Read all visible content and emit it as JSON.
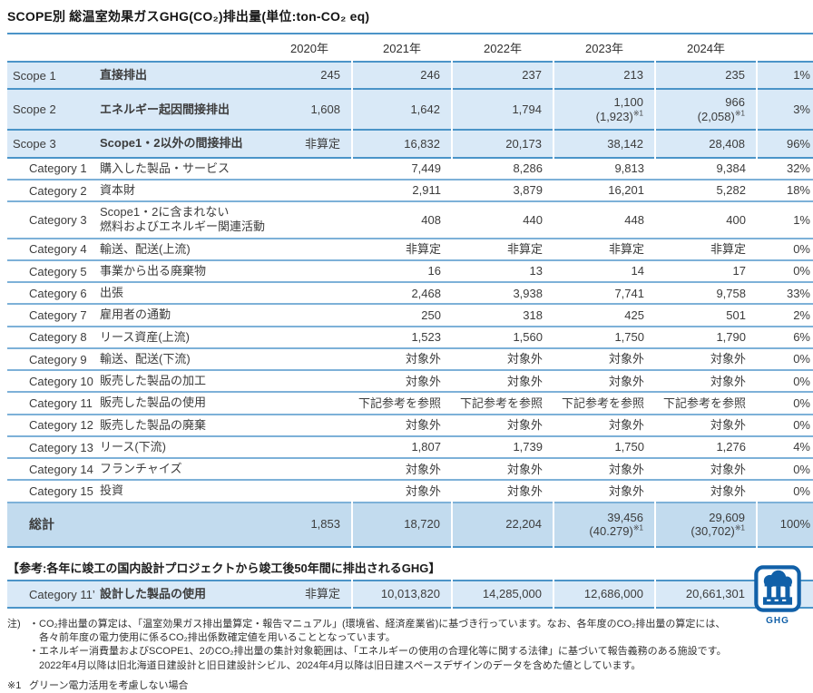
{
  "title": "SCOPE別 総温室効果ガスGHG(CO₂)排出量(単位:ton-CO₂ eq)",
  "colors": {
    "accent": "#4b94c8",
    "bg_scope": "#d9e9f7",
    "bg_total": "#c2dbee",
    "logo_blue": "#1160a8"
  },
  "table": {
    "year_headers": [
      "2020年",
      "2021年",
      "2022年",
      "2023年",
      "2024年"
    ],
    "rows": [
      {
        "type": "scope",
        "label": "Scope 1",
        "desc": "直接排出",
        "values": [
          "245",
          "246",
          "237",
          "213",
          "235"
        ],
        "pct": "1%"
      },
      {
        "type": "scope",
        "label": "Scope 2",
        "desc": "エネルギー起因間接排出",
        "values": [
          "1,608",
          "1,642",
          "1,794",
          {
            "main": "1,100",
            "sub": "(1,923)",
            "ref": "※1"
          },
          {
            "main": "966",
            "sub": "(2,058)",
            "ref": "※1"
          }
        ],
        "pct": "3%"
      },
      {
        "type": "scope",
        "label": "Scope 3",
        "desc": "Scope1・2以外の間接排出",
        "values": [
          "非算定",
          "16,832",
          "20,173",
          "38,142",
          "28,408"
        ],
        "pct": "96%"
      },
      {
        "type": "category",
        "label": "Category 1",
        "desc": "購入した製品・サービス",
        "values": [
          "",
          "7,449",
          "8,286",
          "9,813",
          "9,384"
        ],
        "pct": "32%"
      },
      {
        "type": "category",
        "label": "Category 2",
        "desc": "資本財",
        "values": [
          "",
          "2,911",
          "3,879",
          "16,201",
          "5,282"
        ],
        "pct": "18%"
      },
      {
        "type": "category",
        "label": "Category 3",
        "desc": "Scope1・2に含まれない\n燃料およびエネルギー関連活動",
        "values": [
          "",
          "408",
          "440",
          "448",
          "400"
        ],
        "pct": "1%"
      },
      {
        "type": "category",
        "label": "Category 4",
        "desc": "輸送、配送(上流)",
        "values": [
          "",
          "非算定",
          "非算定",
          "非算定",
          "非算定"
        ],
        "pct": "0%"
      },
      {
        "type": "category",
        "label": "Category 5",
        "desc": "事業から出る廃棄物",
        "values": [
          "",
          "16",
          "13",
          "14",
          "17"
        ],
        "pct": "0%"
      },
      {
        "type": "category",
        "label": "Category 6",
        "desc": "出張",
        "values": [
          "",
          "2,468",
          "3,938",
          "7,741",
          "9,758"
        ],
        "pct": "33%"
      },
      {
        "type": "category",
        "label": "Category 7",
        "desc": "雇用者の通勤",
        "values": [
          "",
          "250",
          "318",
          "425",
          "501"
        ],
        "pct": "2%"
      },
      {
        "type": "category",
        "label": "Category 8",
        "desc": "リース資産(上流)",
        "values": [
          "",
          "1,523",
          "1,560",
          "1,750",
          "1,790"
        ],
        "pct": "6%"
      },
      {
        "type": "category",
        "label": "Category 9",
        "desc": "輸送、配送(下流)",
        "values": [
          "",
          "対象外",
          "対象外",
          "対象外",
          "対象外"
        ],
        "pct": "0%"
      },
      {
        "type": "category",
        "label": "Category 10",
        "desc": "販売した製品の加工",
        "values": [
          "",
          "対象外",
          "対象外",
          "対象外",
          "対象外"
        ],
        "pct": "0%"
      },
      {
        "type": "category",
        "label": "Category 11",
        "desc": "販売した製品の使用",
        "values": [
          "",
          "下記参考を参照",
          "下記参考を参照",
          "下記参考を参照",
          "下記参考を参照"
        ],
        "pct": "0%"
      },
      {
        "type": "category",
        "label": "Category 12",
        "desc": "販売した製品の廃棄",
        "values": [
          "",
          "対象外",
          "対象外",
          "対象外",
          "対象外"
        ],
        "pct": "0%"
      },
      {
        "type": "category",
        "label": "Category 13",
        "desc": "リース(下流)",
        "values": [
          "",
          "1,807",
          "1,739",
          "1,750",
          "1,276"
        ],
        "pct": "4%"
      },
      {
        "type": "category",
        "label": "Category 14",
        "desc": "フランチャイズ",
        "values": [
          "",
          "対象外",
          "対象外",
          "対象外",
          "対象外"
        ],
        "pct": "0%"
      },
      {
        "type": "category",
        "label": "Category 15",
        "desc": "投資",
        "values": [
          "",
          "対象外",
          "対象外",
          "対象外",
          "対象外"
        ],
        "pct": "0%"
      },
      {
        "type": "total",
        "label": "総計",
        "desc": "",
        "values": [
          "1,853",
          "18,720",
          "22,204",
          {
            "main": "39,456",
            "sub": "(40.279)",
            "ref": "※1"
          },
          {
            "main": "29,609",
            "sub": "(30,702)",
            "ref": "※1"
          }
        ],
        "pct": "100%"
      }
    ]
  },
  "reference": {
    "heading": "【参考:各年に竣工の国内設計プロジェクトから竣工後50年間に排出されるGHG】",
    "row": {
      "type": "ref",
      "label": "Category 11’",
      "desc": "設計した製品の使用",
      "values": [
        "非算定",
        "10,013,820",
        "14,285,000",
        "12,686,000",
        "20,661,301"
      ],
      "pct": ""
    }
  },
  "notes": {
    "prefix": "注)",
    "lines": [
      "・CO₂排出量の算定は、「温室効果ガス排出量算定・報告マニュアル」(環境省、経済産業省)に基づき行っています。なお、各年度のCO₂排出量の算定には、",
      "各々前年度の電力使用に係るCO₂排出係数確定値を用いることとなっています。",
      "・エネルギー消費量およびSCOPE1、2のCO₂排出量の集計対象範囲は、「エネルギーの使用の合理化等に関する法律」に基づいて報告義務のある施設です。",
      "2022年4月以降は旧北海道日建設計と旧日建設計シビル、2024年4月以降は旧日建スペースデザインのデータを含めた値としています。"
    ],
    "footnote_mark": "※1",
    "footnote_text": "グリーン電力活用を考慮しない場合"
  },
  "logo": {
    "label": "GHG"
  }
}
